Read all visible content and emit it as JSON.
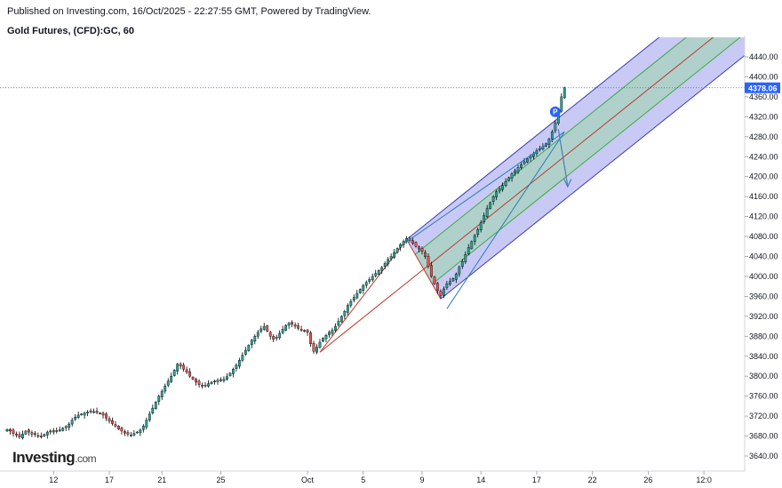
{
  "header": {
    "published": "Published on Investing.com, 16/Oct/2025 - 22:27:55 GMT, Powered by TradingView.",
    "symbol": "Gold Futures, (CFD):GC, 60"
  },
  "logo": {
    "main": "Investing",
    "suffix": ".com"
  },
  "colors": {
    "up": "#26a69a",
    "down": "#ef5350",
    "candle": "#000000",
    "outer_fill": "rgba(120,120,230,0.40)",
    "outer_line": "#3b3fb0",
    "inner_fill": "rgba(140,220,140,0.40)",
    "inner_line": "#3fa84a",
    "median": "#c0392b",
    "price_line": "#2962ff",
    "price_tag": "#2962ff"
  },
  "chart_data": {
    "type": "candlestick",
    "title": "Gold Futures, (CFD):GC, 60",
    "yaxis": {
      "min": 3620,
      "max": 4460,
      "ticks": [
        "4440.00",
        "4400.00",
        "4360.00",
        "4320.00",
        "4280.00",
        "4240.00",
        "4200.00",
        "4160.00",
        "4120.00",
        "4080.00",
        "4040.00",
        "4000.00",
        "3960.00",
        "3920.00",
        "3880.00",
        "3840.00",
        "3800.00",
        "3760.00",
        "3720.00",
        "3680.00",
        "3640.00"
      ],
      "tick_values": [
        4440,
        4400,
        4360,
        4320,
        4280,
        4240,
        4200,
        4160,
        4120,
        4080,
        4040,
        4000,
        3960,
        3920,
        3880,
        3840,
        3800,
        3760,
        3720,
        3680,
        3640
      ]
    },
    "xaxis": {
      "ticks": [
        "12",
        "17",
        "21",
        "25",
        "Oct",
        "5",
        "9",
        "14",
        "17",
        "22",
        "26",
        "12:0"
      ],
      "tick_index": [
        15,
        33,
        50,
        69,
        97,
        115,
        134,
        153,
        171,
        189,
        207,
        225
      ]
    },
    "last_price": "4378.06",
    "last_price_value": 4378.06,
    "price_marker": "P",
    "series_close": [
      3693,
      3690,
      3685,
      3682,
      3678,
      3684,
      3690,
      3688,
      3684,
      3683,
      3680,
      3678,
      3683,
      3688,
      3690,
      3691,
      3689,
      3692,
      3696,
      3699,
      3704,
      3712,
      3718,
      3722,
      3724,
      3726,
      3728,
      3730,
      3729,
      3727,
      3726,
      3722,
      3716,
      3710,
      3705,
      3700,
      3694,
      3690,
      3686,
      3684,
      3682,
      3685,
      3688,
      3692,
      3700,
      3712,
      3724,
      3736,
      3748,
      3760,
      3770,
      3780,
      3790,
      3800,
      3812,
      3824,
      3820,
      3814,
      3808,
      3800,
      3794,
      3788,
      3783,
      3780,
      3782,
      3785,
      3788,
      3790,
      3792,
      3793,
      3794,
      3799,
      3806,
      3814,
      3822,
      3832,
      3842,
      3852,
      3862,
      3872,
      3880,
      3888,
      3895,
      3900,
      3890,
      3880,
      3874,
      3878,
      3886,
      3894,
      3902,
      3906,
      3904,
      3900,
      3896,
      3892,
      3890,
      3888,
      3865,
      3850,
      3858,
      3868,
      3876,
      3882,
      3888,
      3892,
      3900,
      3910,
      3920,
      3930,
      3942,
      3950,
      3958,
      3966,
      3974,
      3982,
      3988,
      3994,
      4000,
      4006,
      4012,
      4018,
      4026,
      4034,
      4040,
      4048,
      4056,
      4064,
      4070,
      4076,
      4072,
      4066,
      4060,
      4055,
      4050,
      4040,
      4020,
      4000,
      3985,
      3972,
      3962,
      3975,
      3985,
      3990,
      3996,
      4005,
      4018,
      4030,
      4044,
      4058,
      4070,
      4082,
      4094,
      4108,
      4122,
      4136,
      4148,
      4160,
      4170,
      4176,
      4182,
      4190,
      4198,
      4206,
      4212,
      4218,
      4224,
      4230,
      4236,
      4242,
      4246,
      4252,
      4256,
      4260,
      4266,
      4275,
      4290,
      4308,
      4330,
      4360,
      4378.06
    ],
    "pitchfork": {
      "pivot_start": {
        "index": 101,
        "price": 3848
      },
      "pivot_high": {
        "index": 129,
        "price": 4074
      },
      "pivot_low": {
        "index": 140,
        "price": 3955
      },
      "end_index": 225
    }
  }
}
